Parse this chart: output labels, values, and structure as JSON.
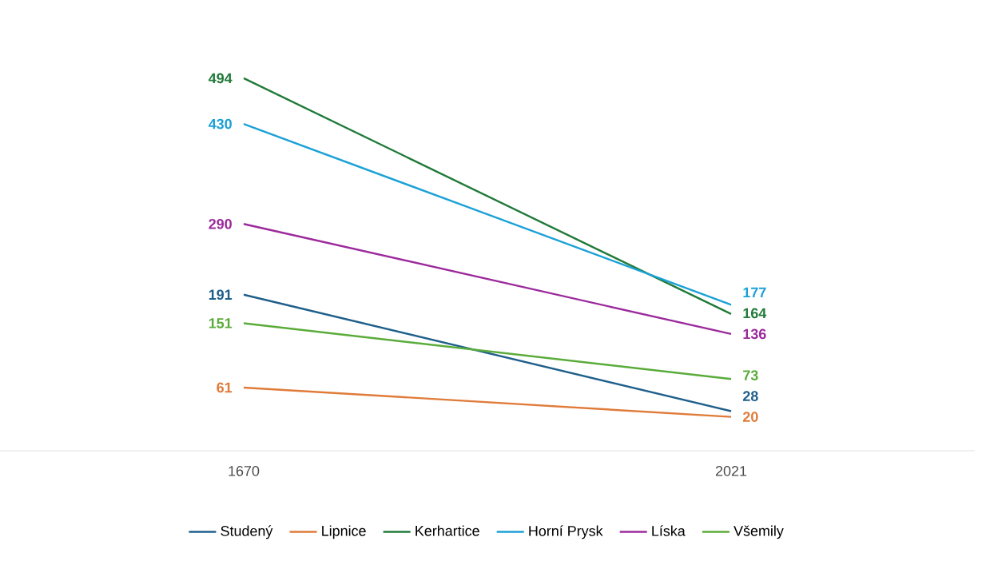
{
  "chart_data": {
    "type": "line",
    "categories": [
      "1670",
      "2021"
    ],
    "series": [
      {
        "name": "Studený",
        "color": "#1f5f8b",
        "values": [
          191,
          28
        ]
      },
      {
        "name": "Lipnice",
        "color": "#e07b39",
        "values": [
          61,
          20
        ]
      },
      {
        "name": "Kerhartice",
        "color": "#217a3a",
        "values": [
          494,
          164
        ]
      },
      {
        "name": "Horní Prysk",
        "color": "#1ba1d6",
        "values": [
          430,
          177
        ]
      },
      {
        "name": "Líska",
        "color": "#9c2a9c",
        "values": [
          290,
          136
        ]
      },
      {
        "name": "Všemily",
        "color": "#5aac3a",
        "values": [
          151,
          73
        ]
      }
    ],
    "data_labels": true,
    "legend": "bottom",
    "grid": false,
    "marker": "none"
  }
}
